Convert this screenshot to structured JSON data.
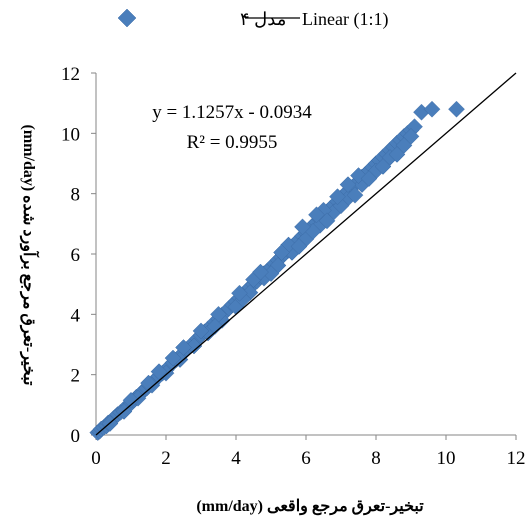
{
  "chart_data": {
    "type": "scatter",
    "xlabel": "تبخیر-تعرق مرجع واقعی (mm/day)",
    "ylabel": "تبخیر-تعرق مرجع برآورد شده (mm/day)",
    "xlim": [
      0,
      12
    ],
    "ylim": [
      0,
      12
    ],
    "x_ticks": [
      "0",
      "2",
      "4",
      "6",
      "8",
      "10",
      "12"
    ],
    "y_ticks": [
      "0",
      "2",
      "4",
      "6",
      "8",
      "10",
      "12"
    ],
    "grid": false,
    "legend_position": "top",
    "legend": [
      {
        "label": "مدل ۴",
        "marker": "diamond",
        "color": "#4a7ebb"
      },
      {
        "label": "Linear (1:1)",
        "marker": "line",
        "color": "#000000"
      }
    ],
    "annotations": {
      "equation": "y = 1.1257x - 0.0934",
      "r_squared": "R² = 0.9955"
    },
    "trend": {
      "slope": 1.1257,
      "intercept": -0.0934
    },
    "reference_line": {
      "name": "Linear (1:1)",
      "x": [
        0,
        12
      ],
      "y": [
        0,
        12
      ]
    },
    "series": [
      {
        "name": "مدل ۴",
        "color": "#4a7ebb",
        "points": [
          [
            0.05,
            0.08
          ],
          [
            0.1,
            0.12
          ],
          [
            0.15,
            0.2
          ],
          [
            0.22,
            0.25
          ],
          [
            0.3,
            0.3
          ],
          [
            0.35,
            0.4
          ],
          [
            0.42,
            0.45
          ],
          [
            0.5,
            0.55
          ],
          [
            0.55,
            0.6
          ],
          [
            0.62,
            0.68
          ],
          [
            0.7,
            0.75
          ],
          [
            0.78,
            0.82
          ],
          [
            0.85,
            0.9
          ],
          [
            0.92,
            1.0
          ],
          [
            1.0,
            1.05
          ],
          [
            1.08,
            1.15
          ],
          [
            1.15,
            1.25
          ],
          [
            1.22,
            1.3
          ],
          [
            1.3,
            1.4
          ],
          [
            1.38,
            1.5
          ],
          [
            1.45,
            1.55
          ],
          [
            1.52,
            1.65
          ],
          [
            1.6,
            1.72
          ],
          [
            1.7,
            1.85
          ],
          [
            1.8,
            1.95
          ],
          [
            1.9,
            2.05
          ],
          [
            2.0,
            2.15
          ],
          [
            2.1,
            2.28
          ],
          [
            2.2,
            2.4
          ],
          [
            2.3,
            2.5
          ],
          [
            2.4,
            2.62
          ],
          [
            2.5,
            2.72
          ],
          [
            2.6,
            2.85
          ],
          [
            2.7,
            2.95
          ],
          [
            2.8,
            3.08
          ],
          [
            2.9,
            3.2
          ],
          [
            3.0,
            3.3
          ],
          [
            3.1,
            3.42
          ],
          [
            3.2,
            3.52
          ],
          [
            3.3,
            3.62
          ],
          [
            3.4,
            3.75
          ],
          [
            3.5,
            3.85
          ],
          [
            3.6,
            3.98
          ],
          [
            3.7,
            4.08
          ],
          [
            3.8,
            4.2
          ],
          [
            3.9,
            4.32
          ],
          [
            4.0,
            4.42
          ],
          [
            4.1,
            4.55
          ],
          [
            4.2,
            4.65
          ],
          [
            4.3,
            4.78
          ],
          [
            4.4,
            4.9
          ],
          [
            4.5,
            5.0
          ],
          [
            4.6,
            5.1
          ],
          [
            4.7,
            5.25
          ],
          [
            4.8,
            5.35
          ],
          [
            4.9,
            5.45
          ],
          [
            5.0,
            5.55
          ],
          [
            5.1,
            5.68
          ],
          [
            5.2,
            5.8
          ],
          [
            5.3,
            5.9
          ],
          [
            5.4,
            6.02
          ],
          [
            5.5,
            6.12
          ],
          [
            5.6,
            6.25
          ],
          [
            5.7,
            6.35
          ],
          [
            5.8,
            6.48
          ],
          [
            5.9,
            6.6
          ],
          [
            6.0,
            6.7
          ],
          [
            6.1,
            6.82
          ],
          [
            6.2,
            6.95
          ],
          [
            6.3,
            7.05
          ],
          [
            6.4,
            7.15
          ],
          [
            6.5,
            7.3
          ],
          [
            6.6,
            7.4
          ],
          [
            6.7,
            7.52
          ],
          [
            6.8,
            7.62
          ],
          [
            6.9,
            7.75
          ],
          [
            7.0,
            7.85
          ],
          [
            7.1,
            7.98
          ],
          [
            7.2,
            8.08
          ],
          [
            7.3,
            8.2
          ],
          [
            7.4,
            8.3
          ],
          [
            7.5,
            8.42
          ],
          [
            7.6,
            8.55
          ],
          [
            7.7,
            8.65
          ],
          [
            7.8,
            8.75
          ],
          [
            7.9,
            8.88
          ],
          [
            8.0,
            9.0
          ],
          [
            8.1,
            9.1
          ],
          [
            8.2,
            9.22
          ],
          [
            8.3,
            9.32
          ],
          [
            8.4,
            9.45
          ],
          [
            8.5,
            9.55
          ],
          [
            8.6,
            9.68
          ],
          [
            8.7,
            9.78
          ],
          [
            8.8,
            9.9
          ],
          [
            8.9,
            10.0
          ],
          [
            9.0,
            10.1
          ],
          [
            9.1,
            10.22
          ],
          [
            9.3,
            10.7
          ],
          [
            9.6,
            10.8
          ],
          [
            10.3,
            10.8
          ],
          [
            0.4,
            0.38
          ],
          [
            0.8,
            0.78
          ],
          [
            1.2,
            1.22
          ],
          [
            1.6,
            1.65
          ],
          [
            2.0,
            2.05
          ],
          [
            2.4,
            2.5
          ],
          [
            2.8,
            2.95
          ],
          [
            3.2,
            3.38
          ],
          [
            3.6,
            3.8
          ],
          [
            4.0,
            4.25
          ],
          [
            4.4,
            4.72
          ],
          [
            4.8,
            5.2
          ],
          [
            5.2,
            5.62
          ],
          [
            5.6,
            6.05
          ],
          [
            6.0,
            6.5
          ],
          [
            6.4,
            6.95
          ],
          [
            6.8,
            7.4
          ],
          [
            7.2,
            7.85
          ],
          [
            7.6,
            8.3
          ],
          [
            8.0,
            8.75
          ],
          [
            8.4,
            9.2
          ],
          [
            8.8,
            9.6
          ],
          [
            1.0,
            1.15
          ],
          [
            1.5,
            1.72
          ],
          [
            2.5,
            2.9
          ],
          [
            3.5,
            4.0
          ],
          [
            4.5,
            5.15
          ],
          [
            5.5,
            6.3
          ],
          [
            6.5,
            7.45
          ],
          [
            7.5,
            8.6
          ],
          [
            5.8,
            6.25
          ],
          [
            6.2,
            6.75
          ],
          [
            7.0,
            7.6
          ],
          [
            7.8,
            8.5
          ],
          [
            8.2,
            8.9
          ],
          [
            8.6,
            9.3
          ],
          [
            9.0,
            9.9
          ],
          [
            5.0,
            5.35
          ],
          [
            4.2,
            4.5
          ],
          [
            3.4,
            3.6
          ],
          [
            6.6,
            7.1
          ],
          [
            7.4,
            7.95
          ],
          [
            3.0,
            3.45
          ],
          [
            2.2,
            2.55
          ],
          [
            1.8,
            2.1
          ],
          [
            6.9,
            7.9
          ],
          [
            7.2,
            8.3
          ],
          [
            6.3,
            7.3
          ],
          [
            5.9,
            6.9
          ],
          [
            5.3,
            6.05
          ],
          [
            4.7,
            5.4
          ],
          [
            4.1,
            4.7
          ]
        ]
      }
    ]
  }
}
